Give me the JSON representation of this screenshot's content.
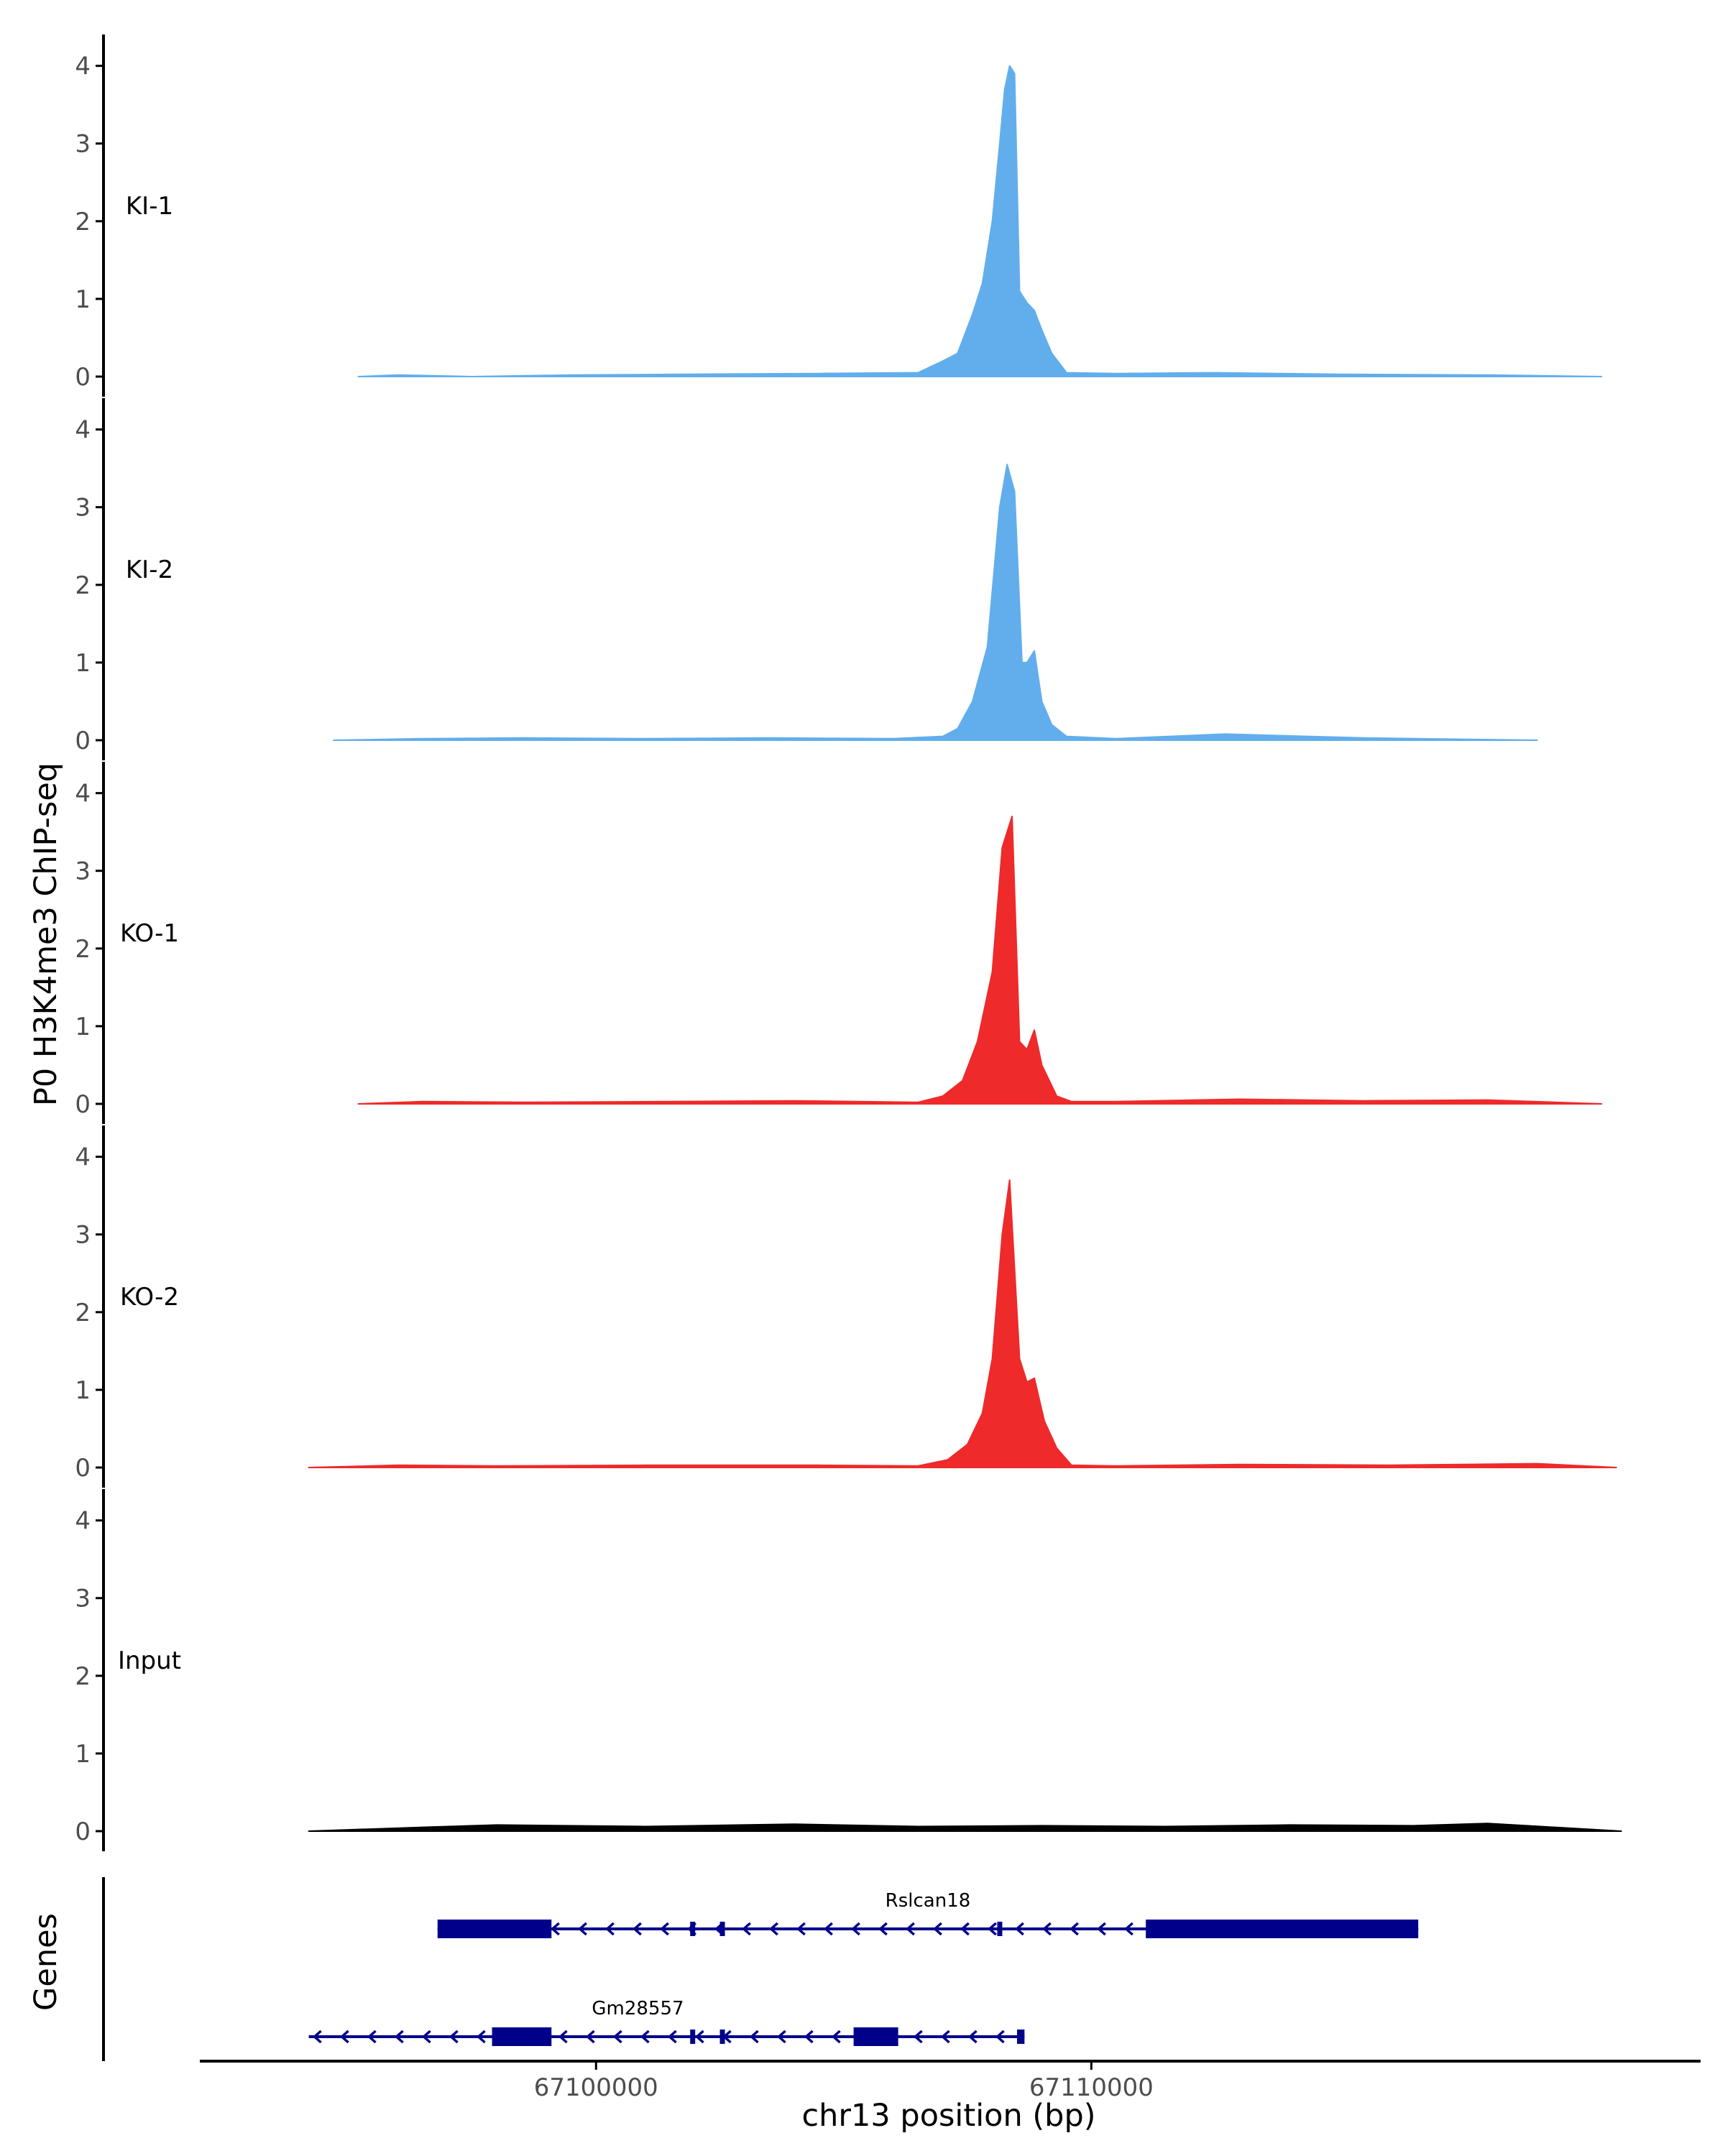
{
  "chart_data": {
    "type": "area",
    "y_axis_title": "P0 H3K4me3 ChIP-seq",
    "x_axis_title": "chr13 position (bp)",
    "x_ticks": [
      67100000,
      67110000
    ],
    "x_tick_labels": [
      "67100000",
      "67110000"
    ],
    "x_range": [
      67092000,
      67122300
    ],
    "y_range": [
      0,
      4.2
    ],
    "y_ticks": [
      0,
      1,
      2,
      3,
      4
    ],
    "y_tick_labels": [
      "0",
      "1",
      "2",
      "3",
      "4"
    ],
    "colors": {
      "KI": "#62AEEC",
      "KO": "#EE2A2B",
      "Input": "#000000",
      "gene": "#00008B",
      "axis": "#000000",
      "tick_label": "#4D4D4D"
    },
    "tracks": [
      {
        "name": "KI-1",
        "color": "#62AEEC",
        "x": [
          67095200,
          67096000,
          67097500,
          67099500,
          67101800,
          67104500,
          67106500,
          67107000,
          67107300,
          67107600,
          67107800,
          67108000,
          67108150,
          67108250,
          67108350,
          67108450,
          67108550,
          67108700,
          67108850,
          67109000,
          67109200,
          67109500,
          67110500,
          67112500,
          67115000,
          67118000,
          67120300
        ],
        "values": [
          0.0,
          0.02,
          0.0,
          0.02,
          0.03,
          0.04,
          0.05,
          0.2,
          0.3,
          0.8,
          1.2,
          2.0,
          3.0,
          3.7,
          4.0,
          3.9,
          1.1,
          0.95,
          0.85,
          0.6,
          0.3,
          0.05,
          0.04,
          0.05,
          0.03,
          0.02,
          0.0
        ]
      },
      {
        "name": "KI-2",
        "color": "#62AEEC",
        "x": [
          67094700,
          67096500,
          67098500,
          67101000,
          67103500,
          67106000,
          67107000,
          67107300,
          67107600,
          67107900,
          67108150,
          67108300,
          67108450,
          67108600,
          67108700,
          67108850,
          67109000,
          67109200,
          67109500,
          67110500,
          67112700,
          67115500,
          67119000
        ],
        "values": [
          0.0,
          0.02,
          0.03,
          0.02,
          0.03,
          0.02,
          0.05,
          0.15,
          0.5,
          1.2,
          3.0,
          3.55,
          3.2,
          1.0,
          1.0,
          1.15,
          0.5,
          0.2,
          0.05,
          0.02,
          0.08,
          0.03,
          0.0
        ]
      },
      {
        "name": "KO-1",
        "color": "#EE2A2B",
        "x": [
          67095200,
          67096500,
          67098500,
          67101500,
          67104000,
          67106500,
          67107000,
          67107400,
          67107700,
          67108000,
          67108200,
          67108400,
          67108550,
          67108700,
          67108850,
          67109000,
          67109300,
          67109600,
          67110500,
          67113000,
          67115500,
          67118000,
          67120300
        ],
        "values": [
          0.0,
          0.03,
          0.02,
          0.03,
          0.04,
          0.02,
          0.1,
          0.3,
          0.8,
          1.7,
          3.3,
          3.7,
          0.8,
          0.7,
          0.95,
          0.5,
          0.1,
          0.03,
          0.03,
          0.06,
          0.04,
          0.05,
          0.0
        ]
      },
      {
        "name": "KO-2",
        "color": "#EE2A2B",
        "x": [
          67094200,
          67096000,
          67098000,
          67101000,
          67104500,
          67106500,
          67107100,
          67107500,
          67107800,
          67108000,
          67108200,
          67108350,
          67108550,
          67108700,
          67108850,
          67109050,
          67109300,
          67109600,
          67110500,
          67113000,
          67116000,
          67119000,
          67120600
        ],
        "values": [
          0.0,
          0.03,
          0.02,
          0.03,
          0.03,
          0.02,
          0.1,
          0.3,
          0.7,
          1.4,
          3.0,
          3.7,
          1.4,
          1.1,
          1.15,
          0.6,
          0.25,
          0.03,
          0.02,
          0.04,
          0.03,
          0.05,
          0.0
        ]
      },
      {
        "name": "Input",
        "color": "#000000",
        "x": [
          67094200,
          67096500,
          67098000,
          67101000,
          67104000,
          67106500,
          67109000,
          67111500,
          67114000,
          67116500,
          67118000,
          67120700
        ],
        "values": [
          0.0,
          0.05,
          0.08,
          0.06,
          0.09,
          0.06,
          0.07,
          0.06,
          0.08,
          0.07,
          0.1,
          0.0
        ]
      }
    ],
    "genes_track_label": "Genes",
    "genes": [
      {
        "name": "Rslcan18",
        "strand": "-",
        "start": 67096800,
        "end": 67116600,
        "exons": [
          [
            67096800,
            67099100,
            "thick"
          ],
          [
            67101900,
            67101950,
            "thin"
          ],
          [
            67102500,
            67102600,
            "thin"
          ],
          [
            67108100,
            67108180,
            "thin"
          ],
          [
            67111100,
            67116600,
            "thick"
          ]
        ]
      },
      {
        "name": "Gm28557",
        "strand": "-",
        "start": 67094200,
        "end": 67108650,
        "exons": [
          [
            67097900,
            67099100,
            "thick"
          ],
          [
            67101900,
            67101950,
            "thin"
          ],
          [
            67102500,
            67102600,
            "thin"
          ],
          [
            67105200,
            67106100,
            "thick"
          ],
          [
            67108500,
            67108650,
            "thin"
          ]
        ]
      }
    ]
  }
}
